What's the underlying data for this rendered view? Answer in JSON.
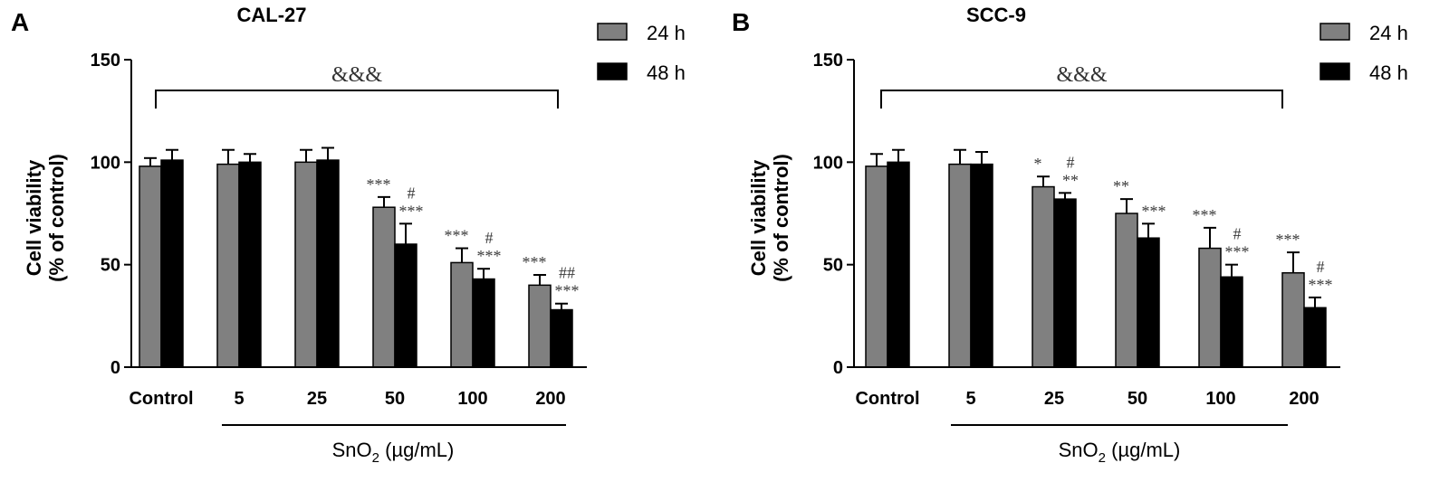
{
  "chart_data": [
    {
      "panel": "A",
      "type": "bar",
      "title": "CAL-27",
      "ylabel": "Cell viability (% of control)",
      "xlabel": "SnO2 (µg/mL)",
      "xlabel_base": "SnO",
      "xlabel_sub": "2",
      "xlabel_rest": " (µg/mL)",
      "ylim": [
        0,
        150
      ],
      "yticks": [
        "0",
        "50",
        "100",
        "150"
      ],
      "categories": [
        "Control",
        "5",
        "25",
        "50",
        "100",
        "200"
      ],
      "legend": {
        "position": "top-right",
        "entries": [
          "24 h",
          "48 h"
        ]
      },
      "series": [
        {
          "name": "24 h",
          "color": "#808080",
          "values": [
            98,
            99,
            100,
            78,
            51,
            40
          ],
          "errors": [
            4,
            7,
            6,
            5,
            7,
            5
          ]
        },
        {
          "name": "48 h",
          "color": "#000000",
          "values": [
            101,
            100,
            101,
            60,
            43,
            28
          ],
          "errors": [
            5,
            4,
            6,
            10,
            5,
            3
          ]
        }
      ],
      "bracket_label": "&&&",
      "annotations": [
        {
          "category": "50",
          "series": 0,
          "text": "***"
        },
        {
          "category": "50",
          "series": 1,
          "text": "***"
        },
        {
          "category": "50",
          "series": 1,
          "text": "#"
        },
        {
          "category": "100",
          "series": 0,
          "text": "***"
        },
        {
          "category": "100",
          "series": 1,
          "text": "***"
        },
        {
          "category": "100",
          "series": 1,
          "text": "#"
        },
        {
          "category": "200",
          "series": 0,
          "text": "***"
        },
        {
          "category": "200",
          "series": 1,
          "text": "***"
        },
        {
          "category": "200",
          "series": 1,
          "text": "##"
        }
      ]
    },
    {
      "panel": "B",
      "type": "bar",
      "title": "SCC-9",
      "ylabel": "Cell viability (% of control)",
      "xlabel": "SnO2 (µg/mL)",
      "xlabel_base": "SnO",
      "xlabel_sub": "2",
      "xlabel_rest": " (µg/mL)",
      "ylim": [
        0,
        150
      ],
      "yticks": [
        "0",
        "50",
        "100",
        "150"
      ],
      "categories": [
        "Control",
        "5",
        "25",
        "50",
        "100",
        "200"
      ],
      "legend": {
        "position": "top-right",
        "entries": [
          "24 h",
          "48 h"
        ]
      },
      "series": [
        {
          "name": "24 h",
          "color": "#808080",
          "values": [
            98,
            99,
            88,
            75,
            58,
            46
          ],
          "errors": [
            6,
            7,
            5,
            7,
            10,
            10
          ]
        },
        {
          "name": "48 h",
          "color": "#000000",
          "values": [
            100,
            99,
            82,
            63,
            44,
            29
          ],
          "errors": [
            6,
            6,
            3,
            7,
            6,
            5
          ]
        }
      ],
      "bracket_label": "&&&",
      "annotations": [
        {
          "category": "25",
          "series": 0,
          "text": "*"
        },
        {
          "category": "25",
          "series": 1,
          "text": "**"
        },
        {
          "category": "25",
          "series": 1,
          "text": "#"
        },
        {
          "category": "50",
          "series": 0,
          "text": "**"
        },
        {
          "category": "50",
          "series": 1,
          "text": "***"
        },
        {
          "category": "100",
          "series": 0,
          "text": "***"
        },
        {
          "category": "100",
          "series": 1,
          "text": "***"
        },
        {
          "category": "100",
          "series": 1,
          "text": "#"
        },
        {
          "category": "200",
          "series": 0,
          "text": "***"
        },
        {
          "category": "200",
          "series": 1,
          "text": "***"
        },
        {
          "category": "200",
          "series": 1,
          "text": "#"
        }
      ]
    }
  ]
}
